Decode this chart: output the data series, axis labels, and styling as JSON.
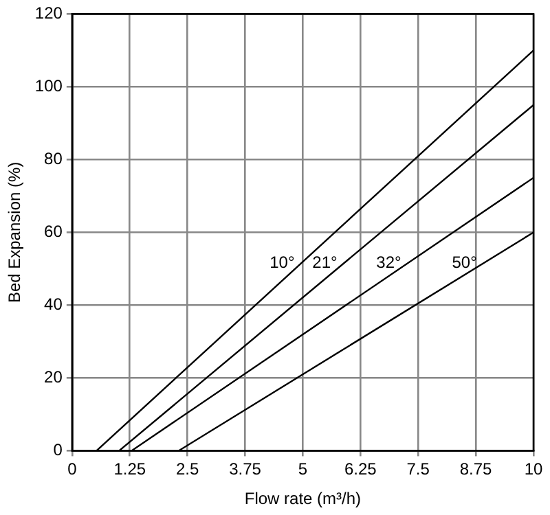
{
  "chart_data": {
    "type": "line",
    "xlabel": "Flow rate (m³/h)",
    "ylabel": "Bed Expansion (%)",
    "xlim": [
      0,
      10
    ],
    "ylim": [
      0,
      120
    ],
    "xticks": [
      0,
      1.25,
      2.5,
      3.75,
      5,
      6.25,
      7.5,
      8.75,
      10
    ],
    "yticks": [
      0,
      20,
      40,
      60,
      80,
      100,
      120
    ],
    "grid": true,
    "legend": false,
    "marker": "none",
    "line_style": "solid",
    "series": [
      {
        "name": "10°",
        "color": "#000000",
        "x": [
          0.53,
          10
        ],
        "values": [
          0,
          110
        ]
      },
      {
        "name": "21°",
        "color": "#000000",
        "x": [
          1.02,
          10
        ],
        "values": [
          0,
          95
        ]
      },
      {
        "name": "32°",
        "color": "#000000",
        "x": [
          1.29,
          10
        ],
        "values": [
          0,
          75
        ]
      },
      {
        "name": "50°",
        "color": "#000000",
        "x": [
          2.31,
          10
        ],
        "values": [
          0,
          60
        ]
      }
    ]
  }
}
